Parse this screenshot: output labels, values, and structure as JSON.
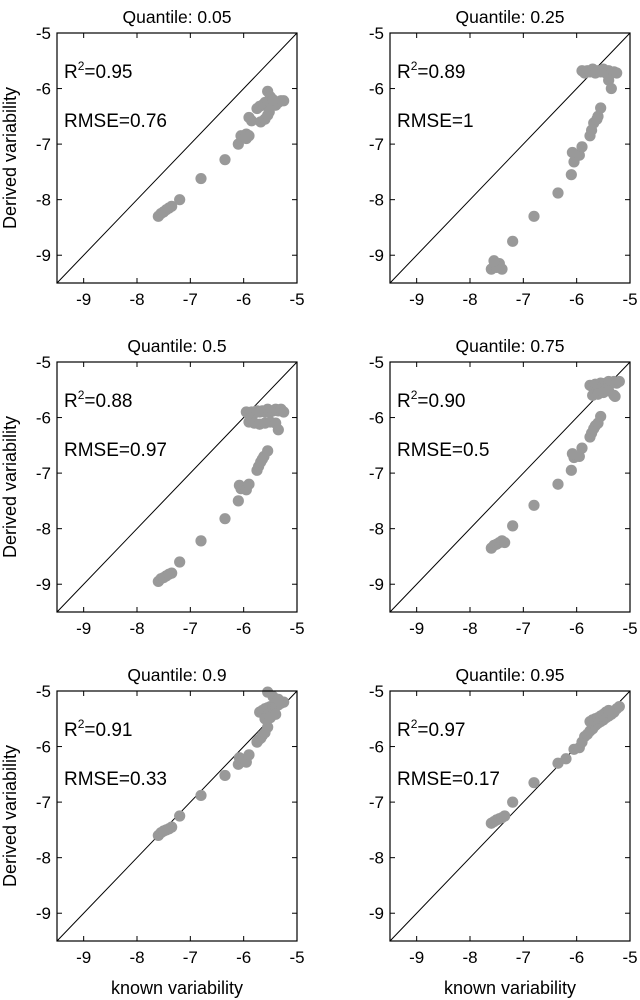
{
  "figure": {
    "ylabel": "Derived variability",
    "xlabel": "known variability"
  },
  "colors": {
    "points": "#999999",
    "axes": "#000000",
    "background": "#ffffff"
  },
  "chart_data": [
    {
      "type": "scatter",
      "title": "Quantile: 0.05",
      "r2_label": "R",
      "r2_exp": "2",
      "r2_value": "=0.95",
      "rmse_label": "RMSE=0.76",
      "xlim": [
        -9.5,
        -5
      ],
      "ylim": [
        -9.5,
        -5
      ],
      "xticks": [
        "-9",
        "-8",
        "-7",
        "-6",
        "-5"
      ],
      "yticks": [
        "-5",
        "-6",
        "-7",
        "-8",
        "-9"
      ],
      "reference_line": "y = x",
      "points": [
        [
          -7.6,
          -8.3
        ],
        [
          -7.55,
          -8.25
        ],
        [
          -7.5,
          -8.22
        ],
        [
          -7.45,
          -8.18
        ],
        [
          -7.4,
          -8.15
        ],
        [
          -7.35,
          -8.12
        ],
        [
          -7.2,
          -8.0
        ],
        [
          -6.8,
          -7.62
        ],
        [
          -6.35,
          -7.28
        ],
        [
          -6.1,
          -7.0
        ],
        [
          -6.05,
          -6.85
        ],
        [
          -5.95,
          -6.9
        ],
        [
          -5.95,
          -6.82
        ],
        [
          -5.9,
          -6.85
        ],
        [
          -5.9,
          -6.52
        ],
        [
          -5.85,
          -6.58
        ],
        [
          -5.75,
          -6.36
        ],
        [
          -5.7,
          -6.32
        ],
        [
          -5.65,
          -6.3
        ],
        [
          -5.62,
          -6.28
        ],
        [
          -5.6,
          -6.25
        ],
        [
          -5.55,
          -6.3
        ],
        [
          -5.5,
          -6.25
        ],
        [
          -5.45,
          -6.22
        ],
        [
          -5.4,
          -6.3
        ],
        [
          -5.35,
          -6.25
        ],
        [
          -5.3,
          -6.22
        ],
        [
          -5.25,
          -6.22
        ],
        [
          -5.55,
          -6.05
        ],
        [
          -5.5,
          -6.15
        ],
        [
          -5.45,
          -6.2
        ],
        [
          -5.68,
          -6.6
        ],
        [
          -5.6,
          -6.55
        ],
        [
          -5.55,
          -6.48
        ],
        [
          -5.52,
          -6.42
        ]
      ]
    },
    {
      "type": "scatter",
      "title": "Quantile: 0.25",
      "r2_label": "R",
      "r2_exp": "2",
      "r2_value": "=0.89",
      "rmse_label": "RMSE=1",
      "xlim": [
        -9.5,
        -5
      ],
      "ylim": [
        -9.5,
        -5
      ],
      "xticks": [
        "-9",
        "-8",
        "-7",
        "-6",
        "-5"
      ],
      "yticks": [
        "-5",
        "-6",
        "-7",
        "-8",
        "-9"
      ],
      "reference_line": "y = x",
      "points": [
        [
          -7.6,
          -9.25
        ],
        [
          -7.55,
          -9.2
        ],
        [
          -7.5,
          -9.22
        ],
        [
          -7.45,
          -9.15
        ],
        [
          -7.4,
          -9.25
        ],
        [
          -7.55,
          -9.1
        ],
        [
          -7.2,
          -8.75
        ],
        [
          -6.8,
          -8.3
        ],
        [
          -6.35,
          -7.88
        ],
        [
          -6.1,
          -7.55
        ],
        [
          -6.05,
          -7.32
        ],
        [
          -6.08,
          -7.15
        ],
        [
          -5.95,
          -7.2
        ],
        [
          -5.9,
          -7.05
        ],
        [
          -5.75,
          -6.85
        ],
        [
          -5.72,
          -6.75
        ],
        [
          -5.68,
          -6.62
        ],
        [
          -5.62,
          -6.55
        ],
        [
          -5.6,
          -6.5
        ],
        [
          -5.55,
          -6.35
        ],
        [
          -5.9,
          -5.68
        ],
        [
          -5.85,
          -5.72
        ],
        [
          -5.8,
          -5.68
        ],
        [
          -5.75,
          -5.7
        ],
        [
          -5.7,
          -5.65
        ],
        [
          -5.65,
          -5.72
        ],
        [
          -5.6,
          -5.68
        ],
        [
          -5.55,
          -5.7
        ],
        [
          -5.5,
          -5.65
        ],
        [
          -5.45,
          -5.72
        ],
        [
          -5.4,
          -5.68
        ],
        [
          -5.35,
          -5.72
        ],
        [
          -5.3,
          -5.7
        ],
        [
          -5.25,
          -5.72
        ],
        [
          -5.4,
          -5.85
        ],
        [
          -5.35,
          -6.0
        ]
      ]
    },
    {
      "type": "scatter",
      "title": "Quantile: 0.5",
      "r2_label": "R",
      "r2_exp": "2",
      "r2_value": "=0.88",
      "rmse_label": "RMSE=0.97",
      "xlim": [
        -9.5,
        -5
      ],
      "ylim": [
        -9.5,
        -5
      ],
      "xticks": [
        "-9",
        "-8",
        "-7",
        "-6",
        "-5"
      ],
      "yticks": [
        "-5",
        "-6",
        "-7",
        "-8",
        "-9"
      ],
      "reference_line": "y = x",
      "points": [
        [
          -7.6,
          -8.95
        ],
        [
          -7.55,
          -8.9
        ],
        [
          -7.5,
          -8.88
        ],
        [
          -7.45,
          -8.85
        ],
        [
          -7.4,
          -8.82
        ],
        [
          -7.35,
          -8.8
        ],
        [
          -7.2,
          -8.6
        ],
        [
          -6.8,
          -8.22
        ],
        [
          -6.35,
          -7.82
        ],
        [
          -6.1,
          -7.5
        ],
        [
          -6.05,
          -7.28
        ],
        [
          -6.08,
          -7.22
        ],
        [
          -5.95,
          -7.3
        ],
        [
          -5.9,
          -7.2
        ],
        [
          -5.75,
          -6.95
        ],
        [
          -5.72,
          -6.88
        ],
        [
          -5.68,
          -6.8
        ],
        [
          -5.65,
          -6.75
        ],
        [
          -5.62,
          -6.7
        ],
        [
          -5.55,
          -6.6
        ],
        [
          -5.95,
          -5.9
        ],
        [
          -5.9,
          -5.95
        ],
        [
          -5.85,
          -5.9
        ],
        [
          -5.8,
          -5.92
        ],
        [
          -5.75,
          -5.88
        ],
        [
          -5.7,
          -5.9
        ],
        [
          -5.65,
          -5.88
        ],
        [
          -5.6,
          -5.9
        ],
        [
          -5.55,
          -5.85
        ],
        [
          -5.5,
          -5.9
        ],
        [
          -5.45,
          -5.88
        ],
        [
          -5.4,
          -5.85
        ],
        [
          -5.35,
          -5.88
        ],
        [
          -5.3,
          -5.85
        ],
        [
          -5.25,
          -5.9
        ],
        [
          -5.9,
          -6.08
        ],
        [
          -5.8,
          -6.1
        ],
        [
          -5.7,
          -6.12
        ],
        [
          -5.6,
          -6.1
        ],
        [
          -5.5,
          -6.08
        ],
        [
          -5.4,
          -6.1
        ],
        [
          -5.35,
          -6.22
        ]
      ]
    },
    {
      "type": "scatter",
      "title": "Quantile: 0.75",
      "r2_label": "R",
      "r2_exp": "2",
      "r2_value": "=0.90",
      "rmse_label": "RMSE=0.5",
      "xlim": [
        -9.5,
        -5
      ],
      "ylim": [
        -9.5,
        -5
      ],
      "xticks": [
        "-9",
        "-8",
        "-7",
        "-6",
        "-5"
      ],
      "yticks": [
        "-5",
        "-6",
        "-7",
        "-8",
        "-9"
      ],
      "reference_line": "y = x",
      "points": [
        [
          -7.6,
          -8.35
        ],
        [
          -7.55,
          -8.3
        ],
        [
          -7.5,
          -8.28
        ],
        [
          -7.45,
          -8.25
        ],
        [
          -7.4,
          -8.22
        ],
        [
          -7.35,
          -8.25
        ],
        [
          -7.2,
          -7.95
        ],
        [
          -6.8,
          -7.58
        ],
        [
          -6.35,
          -7.2
        ],
        [
          -6.1,
          -6.95
        ],
        [
          -6.05,
          -6.72
        ],
        [
          -6.08,
          -6.65
        ],
        [
          -5.95,
          -6.7
        ],
        [
          -5.9,
          -6.55
        ],
        [
          -5.75,
          -6.35
        ],
        [
          -5.72,
          -6.28
        ],
        [
          -5.68,
          -6.2
        ],
        [
          -5.65,
          -6.15
        ],
        [
          -5.6,
          -6.1
        ],
        [
          -5.55,
          -5.98
        ],
        [
          -5.75,
          -5.42
        ],
        [
          -5.7,
          -5.45
        ],
        [
          -5.65,
          -5.4
        ],
        [
          -5.6,
          -5.42
        ],
        [
          -5.55,
          -5.38
        ],
        [
          -5.5,
          -5.42
        ],
        [
          -5.45,
          -5.38
        ],
        [
          -5.4,
          -5.35
        ],
        [
          -5.35,
          -5.38
        ],
        [
          -5.3,
          -5.35
        ],
        [
          -5.25,
          -5.38
        ],
        [
          -5.2,
          -5.35
        ],
        [
          -5.7,
          -5.6
        ],
        [
          -5.6,
          -5.58
        ],
        [
          -5.5,
          -5.55
        ],
        [
          -5.4,
          -5.52
        ],
        [
          -5.3,
          -5.6
        ],
        [
          -5.28,
          -5.62
        ]
      ]
    },
    {
      "type": "scatter",
      "title": "Quantile: 0.9",
      "r2_label": "R",
      "r2_exp": "2",
      "r2_value": "=0.91",
      "rmse_label": "RMSE=0.33",
      "xlim": [
        -9.5,
        -5
      ],
      "ylim": [
        -9.5,
        -5
      ],
      "xticks": [
        "-9",
        "-8",
        "-7",
        "-6",
        "-5"
      ],
      "yticks": [
        "-5",
        "-6",
        "-7",
        "-8",
        "-9"
      ],
      "reference_line": "y = x",
      "points": [
        [
          -7.6,
          -7.6
        ],
        [
          -7.55,
          -7.55
        ],
        [
          -7.5,
          -7.52
        ],
        [
          -7.45,
          -7.5
        ],
        [
          -7.4,
          -7.48
        ],
        [
          -7.35,
          -7.45
        ],
        [
          -7.2,
          -7.25
        ],
        [
          -6.8,
          -6.88
        ],
        [
          -6.35,
          -6.52
        ],
        [
          -6.1,
          -6.32
        ],
        [
          -6.05,
          -6.25
        ],
        [
          -6.08,
          -6.2
        ],
        [
          -5.95,
          -6.28
        ],
        [
          -5.9,
          -6.15
        ],
        [
          -5.75,
          -5.92
        ],
        [
          -5.72,
          -5.88
        ],
        [
          -5.68,
          -5.85
        ],
        [
          -5.65,
          -5.8
        ],
        [
          -5.6,
          -5.75
        ],
        [
          -5.55,
          -5.65
        ],
        [
          -5.7,
          -5.38
        ],
        [
          -5.65,
          -5.35
        ],
        [
          -5.6,
          -5.32
        ],
        [
          -5.55,
          -5.3
        ],
        [
          -5.5,
          -5.28
        ],
        [
          -5.45,
          -5.3
        ],
        [
          -5.4,
          -5.28
        ],
        [
          -5.35,
          -5.25
        ],
        [
          -5.3,
          -5.22
        ],
        [
          -5.25,
          -5.2
        ],
        [
          -5.55,
          -5.02
        ],
        [
          -5.45,
          -5.1
        ],
        [
          -5.35,
          -5.15
        ],
        [
          -5.6,
          -5.5
        ],
        [
          -5.5,
          -5.48
        ],
        [
          -5.4,
          -5.42
        ]
      ]
    },
    {
      "type": "scatter",
      "title": "Quantile: 0.95",
      "r2_label": "R",
      "r2_exp": "2",
      "r2_value": "=0.97",
      "rmse_label": "RMSE=0.17",
      "xlim": [
        -9.5,
        -5
      ],
      "ylim": [
        -9.5,
        -5
      ],
      "xticks": [
        "-9",
        "-8",
        "-7",
        "-6",
        "-5"
      ],
      "yticks": [
        "-5",
        "-6",
        "-7",
        "-8",
        "-9"
      ],
      "reference_line": "y = x",
      "points": [
        [
          -7.6,
          -7.38
        ],
        [
          -7.55,
          -7.35
        ],
        [
          -7.5,
          -7.32
        ],
        [
          -7.45,
          -7.3
        ],
        [
          -7.4,
          -7.28
        ],
        [
          -7.35,
          -7.25
        ],
        [
          -7.2,
          -7.0
        ],
        [
          -6.8,
          -6.65
        ],
        [
          -6.35,
          -6.3
        ],
        [
          -6.2,
          -6.22
        ],
        [
          -6.05,
          -6.05
        ],
        [
          -5.95,
          -6.02
        ],
        [
          -5.9,
          -5.92
        ],
        [
          -5.85,
          -5.82
        ],
        [
          -5.8,
          -5.78
        ],
        [
          -5.75,
          -5.72
        ],
        [
          -5.7,
          -5.68
        ],
        [
          -5.65,
          -5.62
        ],
        [
          -5.6,
          -5.58
        ],
        [
          -5.55,
          -5.55
        ],
        [
          -5.5,
          -5.52
        ],
        [
          -5.45,
          -5.48
        ],
        [
          -5.4,
          -5.45
        ],
        [
          -5.35,
          -5.42
        ],
        [
          -5.3,
          -5.38
        ],
        [
          -5.25,
          -5.32
        ],
        [
          -5.2,
          -5.28
        ],
        [
          -5.75,
          -5.55
        ],
        [
          -5.7,
          -5.52
        ],
        [
          -5.65,
          -5.5
        ],
        [
          -5.6,
          -5.48
        ],
        [
          -5.55,
          -5.45
        ],
        [
          -5.5,
          -5.42
        ],
        [
          -5.45,
          -5.38
        ],
        [
          -5.4,
          -5.35
        ]
      ]
    }
  ]
}
